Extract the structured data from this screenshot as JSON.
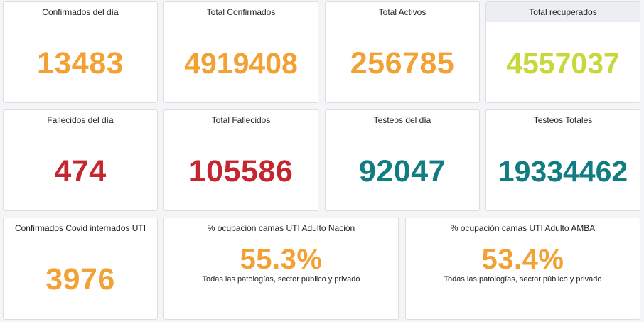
{
  "colors": {
    "orange": "#f2a234",
    "lime": "#c6d83c",
    "red": "#c4272f",
    "teal": "#117c81"
  },
  "row1": [
    {
      "title": "Confirmados del día",
      "value": "13483"
    },
    {
      "title": "Total Confirmados",
      "value": "4919408"
    },
    {
      "title": "Total Activos",
      "value": "256785"
    },
    {
      "title": "Total recuperados",
      "value": "4557037"
    }
  ],
  "row2": [
    {
      "title": "Fallecidos del día",
      "value": "474"
    },
    {
      "title": "Total Fallecidos",
      "value": "105586"
    },
    {
      "title": "Testeos del día",
      "value": "92047"
    },
    {
      "title": "Testeos Totales",
      "value": "19334462"
    }
  ],
  "row3": [
    {
      "title": "Confirmados Covid internados UTI",
      "value": "3976"
    },
    {
      "title": "% ocupación camas UTI Adulto Nación",
      "value": "55.3%",
      "subtitle": "Todas las patologías, sector público y privado"
    },
    {
      "title": "% ocupación camas UTI Adulto AMBA",
      "value": "53.4%",
      "subtitle": "Todas las patologías, sector público y privado"
    }
  ]
}
